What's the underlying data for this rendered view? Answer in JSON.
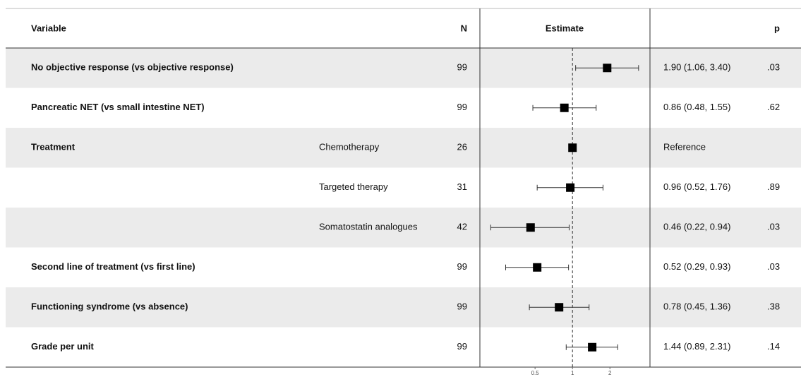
{
  "chart_data": {
    "type": "forest",
    "headers": {
      "variable": "Variable",
      "n": "N",
      "estimate": "Estimate",
      "p": "p"
    },
    "variables": [
      "No objective response (vs objective response)",
      "Pancreatic NET (vs small intestine NET)",
      "Treatment",
      null,
      null,
      "Second line of treatment (vs first line)",
      "Functioning syndrome (vs absence)",
      "Grade per unit"
    ],
    "subgroups": [
      null,
      null,
      "Chemotherapy",
      "Targeted therapy",
      "Somatostatin analogues",
      null,
      null,
      null
    ],
    "n": [
      99,
      99,
      26,
      31,
      42,
      99,
      99,
      99
    ],
    "values": [
      1.9,
      0.86,
      1,
      0.96,
      0.46,
      0.52,
      0.78,
      1.44
    ],
    "lower": [
      1.06,
      0.48,
      null,
      0.52,
      0.22,
      0.29,
      0.45,
      0.89
    ],
    "upper": [
      3.4,
      1.55,
      null,
      1.76,
      0.94,
      0.93,
      1.36,
      2.31
    ],
    "value_labels": [
      "1.90 (1.06, 3.40)",
      "0.86 (0.48, 1.55)",
      "Reference",
      "0.96 (0.52, 1.76)",
      "0.46 (0.22, 0.94)",
      "0.52 (0.29, 0.93)",
      "0.78 (0.45, 1.36)",
      "1.44 (0.89, 2.31)"
    ],
    "p": [
      ".03",
      ".62",
      null,
      ".89",
      ".03",
      ".03",
      ".38",
      ".14"
    ],
    "xscale": "log",
    "xlim": [
      0.18,
      4.2
    ],
    "xticks": [
      0.5,
      1,
      2
    ],
    "reference": 1,
    "color": "#000000",
    "stripe_color": "#ebebeb"
  }
}
